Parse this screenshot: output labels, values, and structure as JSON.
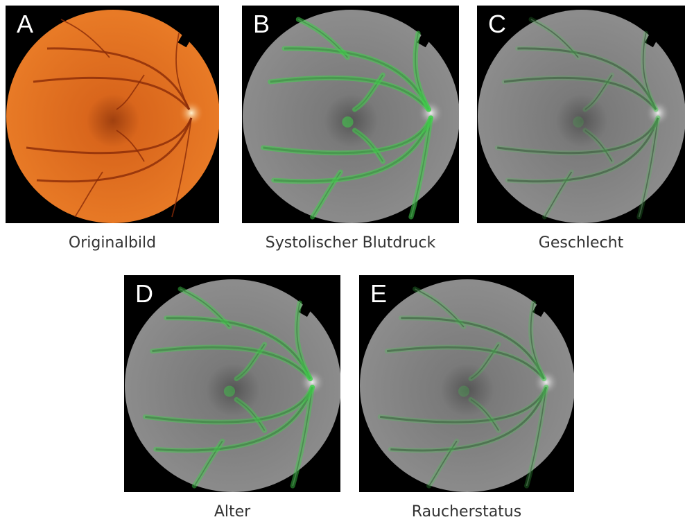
{
  "panels": [
    {
      "letter": "A",
      "caption": "Originalbild"
    },
    {
      "letter": "B",
      "caption": "Systolischer Blutdruck"
    },
    {
      "letter": "C",
      "caption": "Geschlecht"
    },
    {
      "letter": "D",
      "caption": "Alter"
    },
    {
      "letter": "E",
      "caption": "Raucherstatus"
    }
  ]
}
